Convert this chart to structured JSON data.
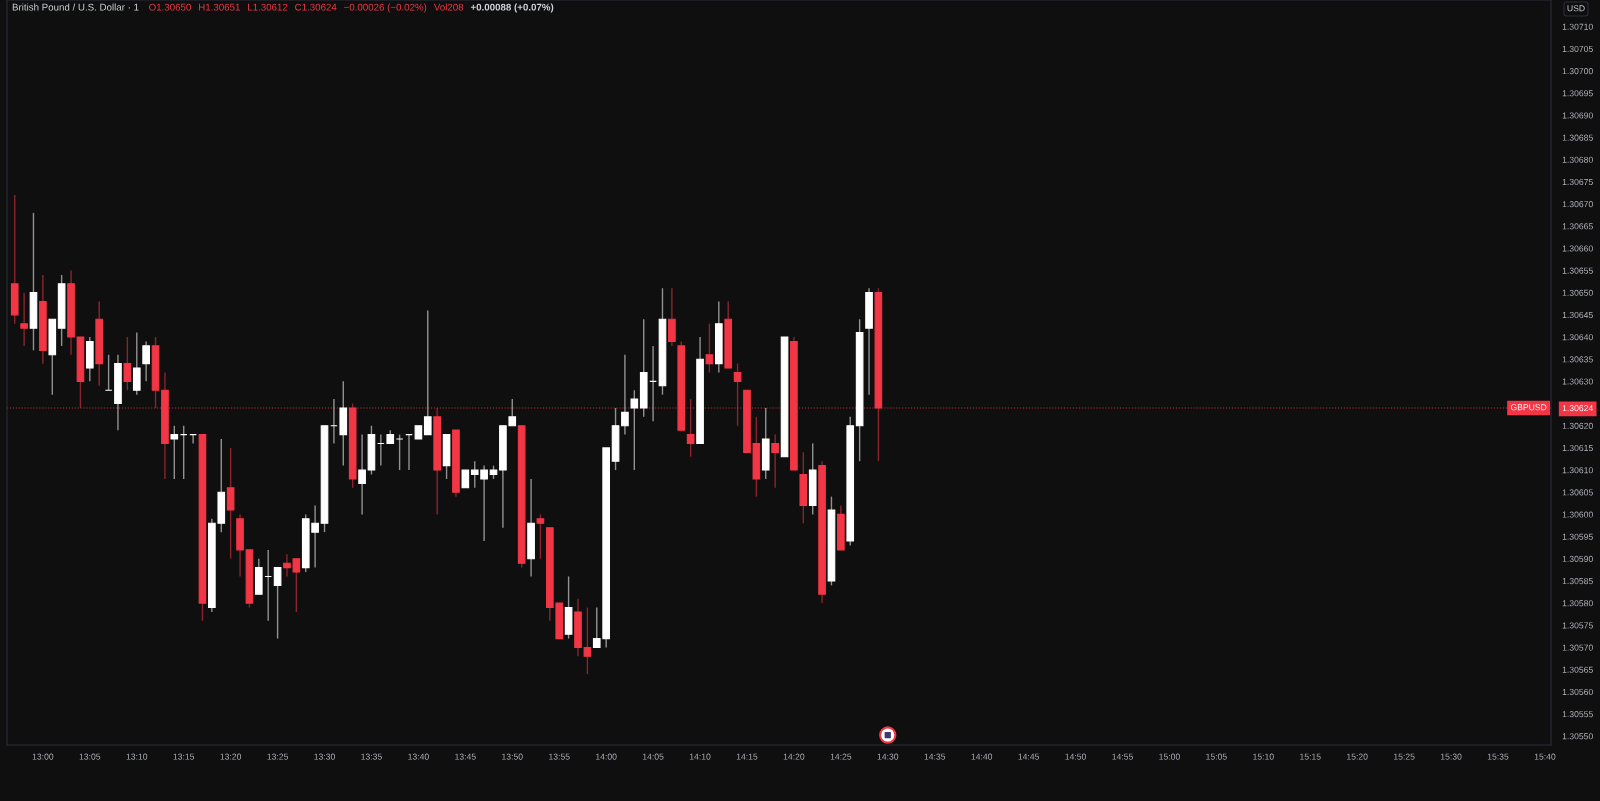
{
  "chart_data": {
    "type": "candlestick",
    "title": "British Pound / U.S. Dollar · 1",
    "annotations": [
      "O1.30650",
      "H1.30651",
      "L1.30612",
      "C1.30624",
      "−0.00026 (−0.02%)",
      "Vol208",
      "+0.00088 (+0.07%)"
    ],
    "ylabel": "USD",
    "x": [
      12.95,
      12.9667,
      12.9833,
      13,
      13.0167,
      13.0333,
      13.05,
      13.0667,
      13.0833,
      13.1,
      13.1167,
      13.1333,
      13.15,
      13.1667,
      13.1833,
      13.2,
      13.2167,
      13.2333,
      13.25,
      13.2667,
      13.2833,
      13.3,
      13.3167,
      13.3333,
      13.35,
      13.3667,
      13.3833,
      13.4,
      13.4167,
      13.4333,
      13.45,
      13.4667,
      13.4833,
      13.5,
      13.5167,
      13.5333,
      13.55,
      13.5667,
      13.5833,
      13.6,
      13.6167,
      13.6333,
      13.65,
      13.6667,
      13.6833,
      13.7,
      13.7167,
      13.7333,
      13.75,
      13.7667,
      13.7833,
      13.8,
      13.8167,
      13.8333,
      13.85,
      13.8667,
      13.8833,
      13.9,
      13.9167,
      13.9333,
      13.95,
      13.9667,
      13.9833,
      14,
      14.0167,
      14.0333,
      14.05,
      14.0667,
      14.0833,
      14.1,
      14.1167,
      14.1333,
      14.15,
      14.1667,
      14.1833,
      14.2,
      14.2167,
      14.2333,
      14.25,
      14.2667,
      14.2833,
      14.3,
      14.3167,
      14.3333,
      14.35,
      14.3667,
      14.3833,
      14.4,
      14.4167,
      14.4333,
      14.45,
      14.4667,
      14.4833
    ],
    "ohlc": [
      [
        1.30652,
        1.30672,
        1.30643,
        1.30645
      ],
      [
        1.30643,
        1.3065,
        1.30638,
        1.30642
      ],
      [
        1.30642,
        1.30668,
        1.30637,
        1.3065
      ],
      [
        1.30648,
        1.30654,
        1.30634,
        1.30637
      ],
      [
        1.30636,
        1.30644,
        1.30627,
        1.30644
      ],
      [
        1.30642,
        1.30654,
        1.30638,
        1.30652
      ],
      [
        1.30652,
        1.30655,
        1.30636,
        1.3064
      ],
      [
        1.3064,
        1.3064,
        1.30624,
        1.3063
      ],
      [
        1.30633,
        1.3064,
        1.3063,
        1.30639
      ],
      [
        1.30644,
        1.30648,
        1.30629,
        1.30634
      ],
      [
        1.30628,
        1.30636,
        1.30628,
        1.30628
      ],
      [
        1.30625,
        1.30636,
        1.30619,
        1.30634
      ],
      [
        1.30634,
        1.3064,
        1.30628,
        1.3063
      ],
      [
        1.30628,
        1.30641,
        1.30627,
        1.30633
      ],
      [
        1.30634,
        1.30639,
        1.3063,
        1.30638
      ],
      [
        1.30638,
        1.3064,
        1.30624,
        1.30628
      ],
      [
        1.30628,
        1.30632,
        1.30608,
        1.30616
      ],
      [
        1.30617,
        1.3062,
        1.30608,
        1.30618
      ],
      [
        1.30618,
        1.3062,
        1.30608,
        1.30618
      ],
      [
        1.30618,
        1.30618,
        1.30616,
        1.30618
      ],
      [
        1.30618,
        1.30618,
        1.30576,
        1.3058
      ],
      [
        1.30579,
        1.30599,
        1.30578,
        1.30598
      ],
      [
        1.30598,
        1.30617,
        1.30596,
        1.30605
      ],
      [
        1.30606,
        1.30615,
        1.3059,
        1.30601
      ],
      [
        1.30599,
        1.306,
        1.30586,
        1.30592
      ],
      [
        1.30592,
        1.30592,
        1.30579,
        1.3058
      ],
      [
        1.30582,
        1.3059,
        1.30582,
        1.30588
      ],
      [
        1.30586,
        1.30592,
        1.30576,
        1.30586
      ],
      [
        1.30584,
        1.30588,
        1.30572,
        1.30588
      ],
      [
        1.30589,
        1.30591,
        1.30586,
        1.30588
      ],
      [
        1.3059,
        1.3059,
        1.30578,
        1.30587
      ],
      [
        1.30588,
        1.306,
        1.30587,
        1.30599
      ],
      [
        1.30596,
        1.30602,
        1.30588,
        1.30598
      ],
      [
        1.30598,
        1.3062,
        1.30596,
        1.3062
      ],
      [
        1.3062,
        1.30626,
        1.30616,
        1.3062
      ],
      [
        1.30618,
        1.3063,
        1.30611,
        1.30624
      ],
      [
        1.30624,
        1.30625,
        1.30606,
        1.30608
      ],
      [
        1.30607,
        1.30618,
        1.306,
        1.3061
      ],
      [
        1.3061,
        1.3062,
        1.30609,
        1.30618
      ],
      [
        1.30616,
        1.30618,
        1.30611,
        1.30616
      ],
      [
        1.30616,
        1.30619,
        1.30616,
        1.30618
      ],
      [
        1.30617,
        1.30618,
        1.3061,
        1.30617
      ],
      [
        1.30618,
        1.30618,
        1.3061,
        1.30618
      ],
      [
        1.30617,
        1.3062,
        1.30617,
        1.3062
      ],
      [
        1.30618,
        1.30646,
        1.30618,
        1.30622
      ],
      [
        1.30622,
        1.30624,
        1.306,
        1.3061
      ],
      [
        1.30611,
        1.30618,
        1.30608,
        1.30618
      ],
      [
        1.30619,
        1.30619,
        1.30604,
        1.30605
      ],
      [
        1.30606,
        1.3061,
        1.30606,
        1.3061
      ],
      [
        1.30609,
        1.30612,
        1.30606,
        1.3061
      ],
      [
        1.30608,
        1.30611,
        1.30594,
        1.3061
      ],
      [
        1.30609,
        1.30611,
        1.30608,
        1.3061
      ],
      [
        1.3061,
        1.3062,
        1.30597,
        1.3062
      ],
      [
        1.3062,
        1.30626,
        1.3062,
        1.30622
      ],
      [
        1.3062,
        1.3062,
        1.30588,
        1.30589
      ],
      [
        1.3059,
        1.30608,
        1.30586,
        1.30598
      ],
      [
        1.30599,
        1.306,
        1.3059,
        1.30598
      ],
      [
        1.30597,
        1.30597,
        1.30576,
        1.30579
      ],
      [
        1.3058,
        1.3058,
        1.30572,
        1.30572
      ],
      [
        1.30573,
        1.30586,
        1.30572,
        1.30579
      ],
      [
        1.30578,
        1.30581,
        1.30568,
        1.3057
      ],
      [
        1.3057,
        1.30579,
        1.30564,
        1.30568
      ],
      [
        1.3057,
        1.30579,
        1.3057,
        1.30572
      ],
      [
        1.30572,
        1.30615,
        1.3057,
        1.30615
      ],
      [
        1.30612,
        1.30624,
        1.3061,
        1.3062
      ],
      [
        1.3062,
        1.30636,
        1.30618,
        1.30623
      ],
      [
        1.30624,
        1.30628,
        1.3061,
        1.30626
      ],
      [
        1.30624,
        1.30644,
        1.30622,
        1.30632
      ],
      [
        1.3063,
        1.30638,
        1.30621,
        1.3063
      ],
      [
        1.30629,
        1.30651,
        1.30627,
        1.30644
      ],
      [
        1.30644,
        1.30651,
        1.30638,
        1.30639
      ],
      [
        1.30638,
        1.30639,
        1.30619,
        1.30619
      ],
      [
        1.30618,
        1.30626,
        1.30613,
        1.30616
      ],
      [
        1.30616,
        1.3064,
        1.30616,
        1.30635
      ],
      [
        1.30636,
        1.30643,
        1.30632,
        1.30634
      ],
      [
        1.30634,
        1.30648,
        1.30632,
        1.30643
      ],
      [
        1.30644,
        1.30648,
        1.30633,
        1.30633
      ],
      [
        1.30632,
        1.30634,
        1.3062,
        1.3063
      ],
      [
        1.30628,
        1.30628,
        1.30614,
        1.30614
      ],
      [
        1.30616,
        1.30622,
        1.30604,
        1.30608
      ],
      [
        1.3061,
        1.30624,
        1.30608,
        1.30617
      ],
      [
        1.30616,
        1.30618,
        1.30606,
        1.30614
      ],
      [
        1.30613,
        1.3064,
        1.30613,
        1.3064
      ],
      [
        1.30639,
        1.3064,
        1.3061,
        1.3061
      ],
      [
        1.30609,
        1.30614,
        1.30598,
        1.30602
      ],
      [
        1.30602,
        1.30616,
        1.306,
        1.3061
      ],
      [
        1.30611,
        1.30612,
        1.3058,
        1.30582
      ],
      [
        1.30585,
        1.30604,
        1.30584,
        1.30601
      ],
      [
        1.306,
        1.30602,
        1.30592,
        1.30592
      ],
      [
        1.30594,
        1.30622,
        1.30593,
        1.3062
      ],
      [
        1.3062,
        1.30644,
        1.30612,
        1.30641
      ],
      [
        1.30642,
        1.30651,
        1.30627,
        1.3065
      ],
      [
        1.3065,
        1.30651,
        1.30612,
        1.30624
      ]
    ],
    "colors": [
      "#f23645",
      "#f23645",
      "#ffffff",
      "#f23645",
      "#ffffff",
      "#ffffff",
      "#f23645",
      "#f23645",
      "#ffffff",
      "#f23645",
      "#ffffff",
      "#ffffff",
      "#f23645",
      "#ffffff",
      "#ffffff",
      "#f23645",
      "#f23645",
      "#ffffff",
      "#ffffff",
      "#ffffff",
      "#f23645",
      "#ffffff",
      "#ffffff",
      "#f23645",
      "#f23645",
      "#f23645",
      "#ffffff",
      "#ffffff",
      "#ffffff",
      "#f23645",
      "#f23645",
      "#ffffff",
      "#ffffff",
      "#ffffff",
      "#ffffff",
      "#ffffff",
      "#f23645",
      "#ffffff",
      "#ffffff",
      "#ffffff",
      "#ffffff",
      "#ffffff",
      "#ffffff",
      "#ffffff",
      "#ffffff",
      "#f23645",
      "#ffffff",
      "#f23645",
      "#ffffff",
      "#ffffff",
      "#ffffff",
      "#ffffff",
      "#ffffff",
      "#ffffff",
      "#f23645",
      "#ffffff",
      "#f23645",
      "#f23645",
      "#f23645",
      "#ffffff",
      "#f23645",
      "#f23645",
      "#ffffff",
      "#ffffff",
      "#ffffff",
      "#ffffff",
      "#ffffff",
      "#ffffff",
      "#ffffff",
      "#ffffff",
      "#f23645",
      "#f23645",
      "#f23645",
      "#ffffff",
      "#f23645",
      "#ffffff",
      "#f23645",
      "#f23645",
      "#f23645",
      "#f23645",
      "#ffffff",
      "#f23645",
      "#ffffff",
      "#f23645",
      "#f23645",
      "#ffffff",
      "#f23645",
      "#ffffff",
      "#f23645",
      "#ffffff",
      "#ffffff",
      "#ffffff",
      "#f23645"
    ],
    "xlim": [
      12.9363,
      15.6774
    ],
    "xticks": [
      {
        "value": 13,
        "label": "13:00"
      },
      {
        "value": 13.0833,
        "label": "13:05"
      },
      {
        "value": 13.1667,
        "label": "13:10"
      },
      {
        "value": 13.25,
        "label": "13:15"
      },
      {
        "value": 13.3333,
        "label": "13:20"
      },
      {
        "value": 13.4167,
        "label": "13:25"
      },
      {
        "value": 13.5,
        "label": "13:30"
      },
      {
        "value": 13.5833,
        "label": "13:35"
      },
      {
        "value": 13.6667,
        "label": "13:40"
      },
      {
        "value": 13.75,
        "label": "13:45"
      },
      {
        "value": 13.8333,
        "label": "13:50"
      },
      {
        "value": 13.9167,
        "label": "13:55"
      },
      {
        "value": 14,
        "label": "14:00"
      },
      {
        "value": 14.0833,
        "label": "14:05"
      },
      {
        "value": 14.1667,
        "label": "14:10"
      },
      {
        "value": 14.25,
        "label": "14:15"
      },
      {
        "value": 14.3333,
        "label": "14:20"
      },
      {
        "value": 14.4167,
        "label": "14:25"
      },
      {
        "value": 14.5,
        "label": "14:30"
      },
      {
        "value": 14.5833,
        "label": "14:35"
      },
      {
        "value": 14.6667,
        "label": "14:40"
      },
      {
        "value": 14.75,
        "label": "14:45"
      },
      {
        "value": 14.8333,
        "label": "14:50"
      },
      {
        "value": 14.9167,
        "label": "14:55"
      },
      {
        "value": 15,
        "label": "15:00"
      },
      {
        "value": 15.0833,
        "label": "15:05"
      },
      {
        "value": 15.1667,
        "label": "15:10"
      },
      {
        "value": 15.25,
        "label": "15:15"
      },
      {
        "value": 15.3333,
        "label": "15:20"
      },
      {
        "value": 15.4167,
        "label": "15:25"
      },
      {
        "value": 15.5,
        "label": "15:30"
      },
      {
        "value": 15.5833,
        "label": "15:35"
      },
      {
        "value": 15.6667,
        "label": "15:40"
      }
    ],
    "ylim": [
      1.30548,
      1.30716
    ],
    "yticks": [
      {
        "value": 1.3055,
        "label": "1.30550"
      },
      {
        "value": 1.30555,
        "label": "1.30555"
      },
      {
        "value": 1.3056,
        "label": "1.30560"
      },
      {
        "value": 1.30565,
        "label": "1.30565"
      },
      {
        "value": 1.3057,
        "label": "1.30570"
      },
      {
        "value": 1.30575,
        "label": "1.30575"
      },
      {
        "value": 1.3058,
        "label": "1.30580"
      },
      {
        "value": 1.30585,
        "label": "1.30585"
      },
      {
        "value": 1.3059,
        "label": "1.30590"
      },
      {
        "value": 1.30595,
        "label": "1.30595"
      },
      {
        "value": 1.306,
        "label": "1.30600"
      },
      {
        "value": 1.30605,
        "label": "1.30605"
      },
      {
        "value": 1.3061,
        "label": "1.30610"
      },
      {
        "value": 1.30615,
        "label": "1.30615"
      },
      {
        "value": 1.3062,
        "label": "1.30620"
      },
      {
        "value": 1.30624,
        "label": "1.30624"
      },
      {
        "value": 1.3063,
        "label": "1.30630"
      },
      {
        "value": 1.30635,
        "label": "1.30635"
      },
      {
        "value": 1.3064,
        "label": "1.30640"
      },
      {
        "value": 1.30645,
        "label": "1.30645"
      },
      {
        "value": 1.3065,
        "label": "1.30650"
      },
      {
        "value": 1.30655,
        "label": "1.30655"
      },
      {
        "value": 1.3066,
        "label": "1.30660"
      },
      {
        "value": 1.30665,
        "label": "1.30665"
      },
      {
        "value": 1.3067,
        "label": "1.30670"
      },
      {
        "value": 1.30675,
        "label": "1.30675"
      },
      {
        "value": 1.3068,
        "label": "1.30680"
      },
      {
        "value": 1.30685,
        "label": "1.30685"
      },
      {
        "value": 1.3069,
        "label": "1.30690"
      },
      {
        "value": 1.30695,
        "label": "1.30695"
      },
      {
        "value": 1.307,
        "label": "1.30700"
      },
      {
        "value": 1.30705,
        "label": "1.30705"
      },
      {
        "value": 1.3071,
        "label": "1.30710"
      }
    ],
    "ref_lines": [
      {
        "axis": "y",
        "value": 1.30624,
        "label": "GBPUSD",
        "color": "#f23645",
        "line_style": "dotted"
      }
    ]
  }
}
